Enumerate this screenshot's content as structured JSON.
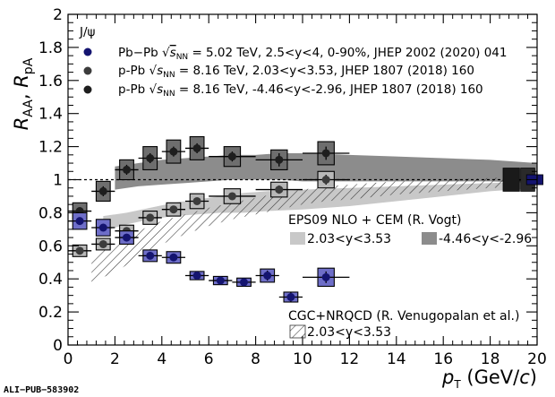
{
  "chart_data": {
    "type": "scatter",
    "title": "",
    "xlabel": "p_T (GeV/c)",
    "ylabel": "R_AA, R_pA",
    "xlim": [
      0,
      20
    ],
    "ylim": [
      0,
      2
    ],
    "xticks": [
      0,
      2,
      4,
      6,
      8,
      10,
      12,
      14,
      16,
      18,
      20
    ],
    "xtick_labels": [
      "0",
      "2",
      "4",
      "6",
      "8",
      "10",
      "12",
      "14",
      "16",
      "18",
      "20"
    ],
    "yticks": [
      0,
      0.2,
      0.4,
      0.6,
      0.8,
      1,
      1.2,
      1.4,
      1.6,
      1.8,
      2
    ],
    "ytick_labels": [
      "0",
      "0.2",
      "0.4",
      "0.6",
      "0.8",
      "1",
      "1.2",
      "1.4",
      "1.6",
      "1.8",
      "2"
    ],
    "legend_header": "J/ψ",
    "legend_position": "top-left",
    "reference_line_y": 1,
    "series": [
      {
        "name": "Pb−Pb √sNN = 5.02 TeV, 2.5<y<4, 0-90%, JHEP 2002 (2020) 041",
        "color": "#141470",
        "box_color": "#6e6ec8",
        "x": [
          0.5,
          1.5,
          2.5,
          3.5,
          4.5,
          5.5,
          6.5,
          7.5,
          8.5,
          9.5,
          11
        ],
        "x_err": [
          0.5,
          0.5,
          0.5,
          0.5,
          0.5,
          0.5,
          0.5,
          0.5,
          0.5,
          0.5,
          1
        ],
        "y": [
          0.75,
          0.71,
          0.65,
          0.54,
          0.53,
          0.42,
          0.39,
          0.38,
          0.42,
          0.29,
          0.41
        ],
        "y_err": [
          0.02,
          0.02,
          0.02,
          0.02,
          0.02,
          0.02,
          0.02,
          0.025,
          0.03,
          0.03,
          0.035
        ],
        "y_syst": [
          0.05,
          0.05,
          0.04,
          0.035,
          0.035,
          0.025,
          0.025,
          0.025,
          0.04,
          0.03,
          0.055
        ]
      },
      {
        "name": "p-Pb √sNN = 8.16 TeV, 2.03<y<3.53, JHEP 1807 (2018) 160",
        "color": "#3c3c3c",
        "box_color": "#b8b8b8",
        "x": [
          0.5,
          1.5,
          2.5,
          3.5,
          4.5,
          5.5,
          7,
          9,
          11
        ],
        "x_err": [
          0.5,
          0.5,
          0.5,
          0.5,
          0.5,
          0.5,
          1,
          1,
          1
        ],
        "y": [
          0.57,
          0.61,
          0.69,
          0.77,
          0.82,
          0.87,
          0.9,
          0.94,
          1.0
        ],
        "y_err": [
          0.015,
          0.015,
          0.015,
          0.015,
          0.015,
          0.02,
          0.02,
          0.025,
          0.03
        ],
        "y_syst": [
          0.035,
          0.035,
          0.035,
          0.04,
          0.04,
          0.045,
          0.045,
          0.045,
          0.05
        ]
      },
      {
        "name": "p-Pb √sNN = 8.16 TeV, -4.46<y<-2.96, JHEP 1807 (2018) 160",
        "color": "#1e1e1e",
        "box_color": "#6e6e6e",
        "x": [
          0.5,
          1.5,
          2.5,
          3.5,
          4.5,
          5.5,
          7,
          9,
          11
        ],
        "x_err": [
          0.5,
          0.5,
          0.5,
          0.5,
          0.5,
          0.5,
          1,
          1,
          1
        ],
        "y": [
          0.81,
          0.93,
          1.06,
          1.13,
          1.17,
          1.19,
          1.14,
          1.12,
          1.16
        ],
        "y_err": [
          0.02,
          0.03,
          0.03,
          0.03,
          0.03,
          0.03,
          0.03,
          0.04,
          0.04
        ],
        "y_syst": [
          0.05,
          0.06,
          0.06,
          0.07,
          0.07,
          0.07,
          0.06,
          0.06,
          0.07
        ]
      }
    ],
    "global_boxes": [
      {
        "x": 18.9,
        "y": 1.0,
        "half_width": 0.35,
        "half_height": 0.07,
        "color": "#1a1a1a"
      },
      {
        "x": 19.6,
        "y": 1.0,
        "half_width": 0.3,
        "half_height": 0.07,
        "color": "#2a2a2a"
      },
      {
        "x": 19.9,
        "y": 1.0,
        "half_width": 0.35,
        "half_height": 0.03,
        "color": "#141470"
      }
    ],
    "models": [
      {
        "name": "EPS09 NLO + CEM (R. Vogt)",
        "bands": [
          {
            "label": "2.03<y<3.53",
            "fill": "#c8c8c8",
            "x": [
              1.5,
              2.5,
              3.5,
              4.5,
              5.5,
              6.5,
              7.5,
              8.5,
              10,
              12,
              14,
              16,
              18,
              20
            ],
            "lo": [
              0.69,
              0.73,
              0.76,
              0.78,
              0.79,
              0.8,
              0.8,
              0.81,
              0.82,
              0.84,
              0.87,
              0.9,
              0.93,
              0.95
            ],
            "hi": [
              0.78,
              0.8,
              0.83,
              0.86,
              0.88,
              0.9,
              0.92,
              0.93,
              0.94,
              0.95,
              0.96,
              0.97,
              0.98,
              0.99
            ]
          },
          {
            "label": "-4.46<y<-2.96",
            "fill": "#8c8c8c",
            "x": [
              2,
              3,
              4,
              5,
              6,
              7,
              8,
              9,
              10,
              12,
              14,
              16,
              18,
              20
            ],
            "lo": [
              0.94,
              0.96,
              0.97,
              0.98,
              0.99,
              1.0,
              1.0,
              1.0,
              0.99,
              0.99,
              0.99,
              0.99,
              0.99,
              0.98
            ],
            "hi": [
              1.08,
              1.1,
              1.12,
              1.13,
              1.14,
              1.15,
              1.15,
              1.16,
              1.16,
              1.15,
              1.14,
              1.13,
              1.12,
              1.1
            ]
          }
        ]
      },
      {
        "name": "CGC+NRQCD (R. Venugopalan et al.)",
        "bands": [
          {
            "label": "2.03<y<3.53",
            "fill": "hatched",
            "x": [
              1,
              2,
              3,
              4,
              5,
              6,
              7,
              8,
              9,
              10,
              11,
              12,
              14,
              16,
              18,
              20
            ],
            "lo": [
              0.38,
              0.44,
              0.53,
              0.61,
              0.67,
              0.72,
              0.76,
              0.79,
              0.82,
              0.85,
              0.87,
              0.88,
              0.91,
              0.93,
              0.95,
              0.96
            ],
            "hi": [
              0.53,
              0.61,
              0.69,
              0.75,
              0.79,
              0.83,
              0.86,
              0.89,
              0.92,
              0.94,
              0.96,
              0.97,
              0.99,
              1.0,
              1.01,
              1.02
            ]
          }
        ]
      }
    ]
  },
  "legend": {
    "header": "J/ψ",
    "pbpb": {
      "system": "Pb−Pb",
      "energy": "= 5.02 TeV, 2.5<y<4, 0-90%, JHEP 2002 (2020) 041"
    },
    "ppb_fwd": {
      "system": "p-Pb",
      "energy": "= 8.16 TeV, 2.03<y<3.53, JHEP 1807 (2018) 160"
    },
    "ppb_bwd": {
      "system": "p-Pb",
      "energy": "= 8.16 TeV, -4.46<y<-2.96, JHEP 1807 (2018) 160"
    }
  },
  "eps09": {
    "title": "EPS09 NLO + CEM (R. Vogt)",
    "fwd": "2.03<y<3.53",
    "bwd": "-4.46<y<-2.96"
  },
  "cgc": {
    "title": "CGC+NRQCD (R. Venugopalan et al.)",
    "fwd": "2.03<y<3.53"
  },
  "footer": "ALI−PUB−583902"
}
